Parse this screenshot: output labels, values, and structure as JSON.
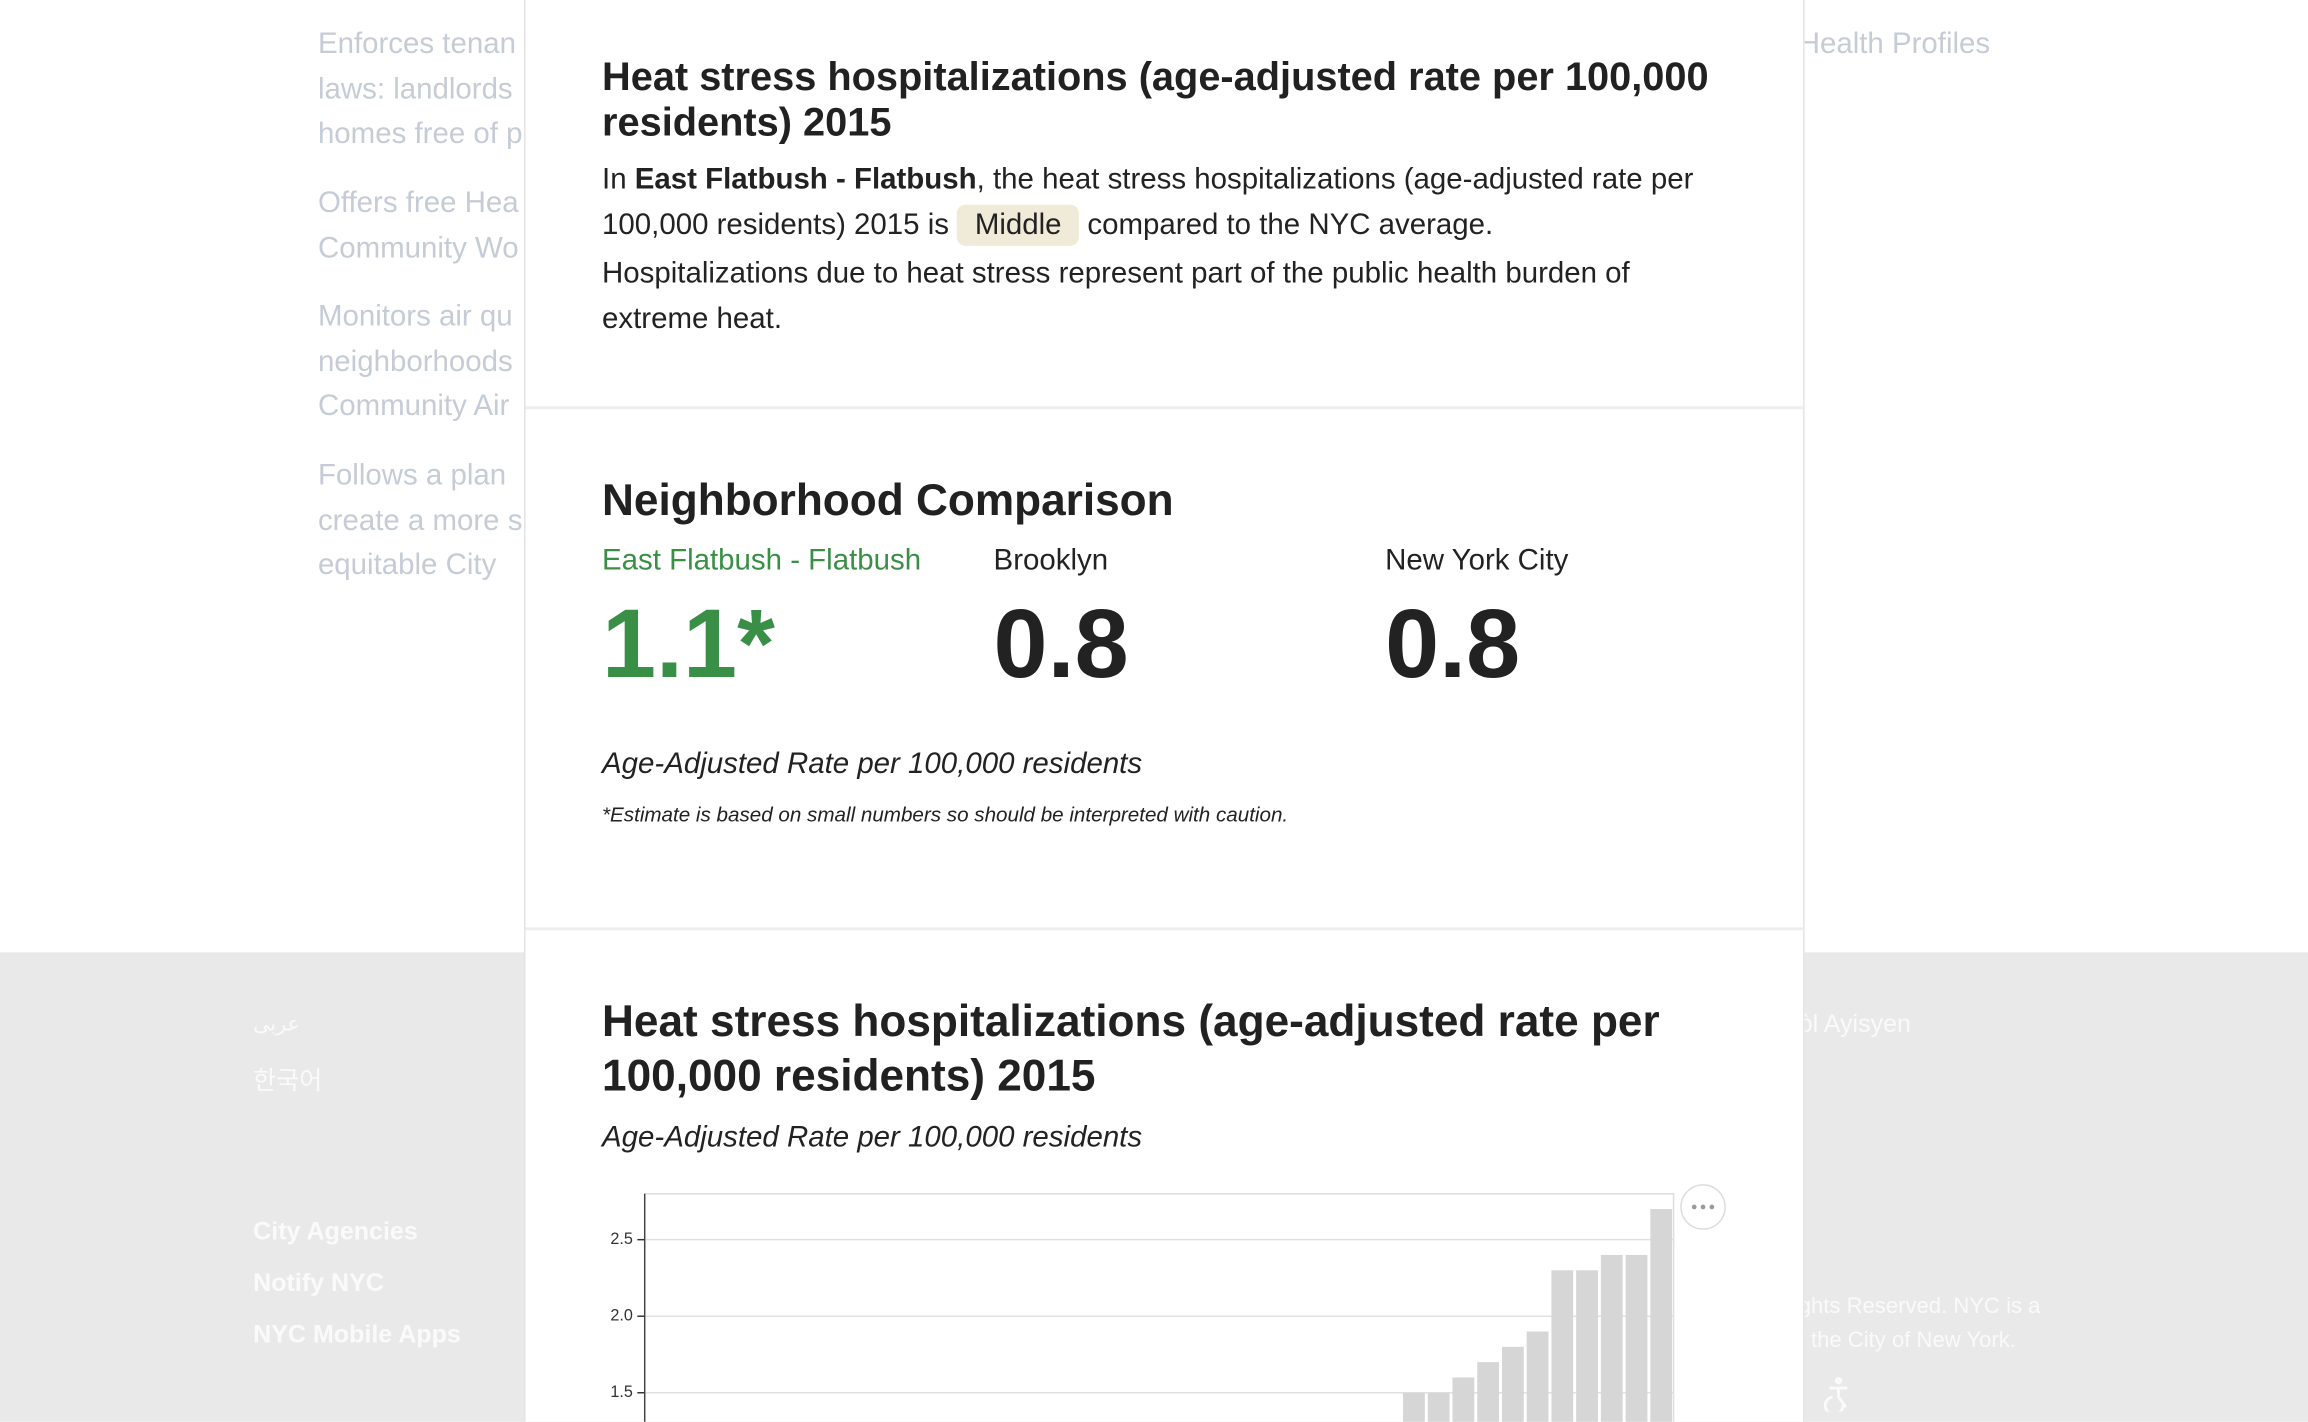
{
  "background": {
    "items": [
      [
        "Enforces tenan",
        "laws: landlords",
        "homes free of p"
      ],
      [
        "Offers free Hea",
        "Community Wo"
      ],
      [
        "Monitors air qu",
        "neighborhoods",
        "Community Air"
      ],
      [
        "Follows a plan",
        "create a more s",
        "equitable City"
      ]
    ],
    "right_link": "Health Profiles"
  },
  "footer": {
    "languages": [
      "عربى",
      "한국어",
      "òl Ayisyen"
    ],
    "links": [
      "City Agencies",
      "Notify NYC",
      "NYC Mobile Apps"
    ],
    "copyright": [
      "ghts Reserved. NYC is a",
      "f the City of New York."
    ]
  },
  "summary": {
    "title": "Heat stress hospitalizations (age-adjusted rate per 100,000 residents) 2015",
    "text": [
      "In ",
      "East Flatbush - Flatbush",
      ", the heat stress hospitalizations (age-adjusted rate per 100,000 residents) 2015 is ",
      "Middle",
      " compared to the NYC average."
    ],
    "note": "Hospitalizations due to heat stress represent part of the public health burden of extreme heat."
  },
  "comparison": {
    "title": "Neighborhood Comparison",
    "items": [
      {
        "label": "East Flatbush - Flatbush",
        "value": "1.1*"
      },
      {
        "label": "Brooklyn",
        "value": "0.8"
      },
      {
        "label": "New York City",
        "value": "0.8"
      }
    ],
    "unit": "Age-Adjusted Rate per 100,000 residents",
    "footnote": "*Estimate is based on small numbers so should be interpreted with caution."
  },
  "chart_data": {
    "type": "bar",
    "title": "Heat stress hospitalizations (age-adjusted rate per 100,000 residents) 2015",
    "subtitle": "Age-Adjusted Rate per 100,000 residents",
    "categories": [
      null,
      null,
      null,
      null,
      null,
      null,
      null,
      null,
      null,
      null,
      null
    ],
    "values": [
      1.5,
      1.5,
      1.6,
      1.7,
      1.8,
      1.9,
      2.3,
      2.3,
      2.4,
      2.4,
      2.7
    ],
    "color": "#d6d6d6",
    "ylim": [
      1.3,
      2.8
    ],
    "yticks": [
      {
        "value": 1.5,
        "label": "1.5"
      },
      {
        "value": 2,
        "label": "2.0"
      },
      {
        "value": 2.5,
        "label": "2.5"
      }
    ],
    "grid": true
  }
}
